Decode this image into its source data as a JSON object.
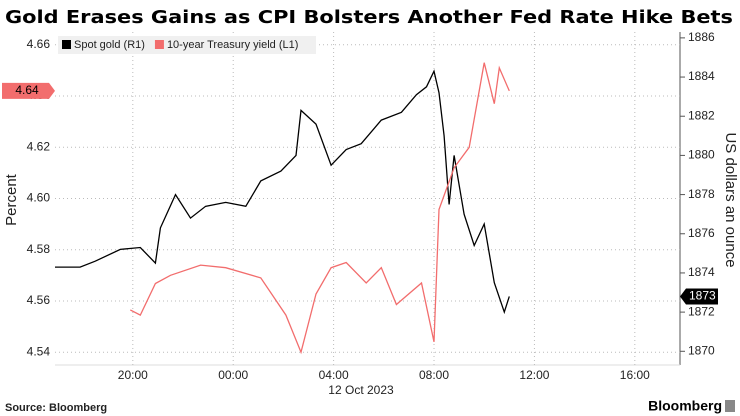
{
  "chart_data": {
    "type": "line",
    "title": "Gold Erases Gains as CPI Bolsters Another Fed Rate Hike Bets",
    "y_label": "Percent",
    "y2_label": "US dollars an ounce",
    "date_label": "12 Oct 2023",
    "source": "Source: Bloomberg",
    "brand": "Bloomberg",
    "xlim": [
      -7.1,
      17.8
    ],
    "xticks": [
      {
        "value": -4,
        "label": "20:00"
      },
      {
        "value": 0,
        "label": "00:00"
      },
      {
        "value": 4,
        "label": "04:00"
      },
      {
        "value": 8,
        "label": "08:00"
      },
      {
        "value": 12,
        "label": "12:00"
      },
      {
        "value": 16,
        "label": "16:00"
      }
    ],
    "ylim": [
      4.535,
      4.665
    ],
    "yticks": [
      4.54,
      4.56,
      4.58,
      {
        "value": 4.6,
        "label": "4.60"
      },
      4.62,
      4.64,
      4.66
    ],
    "y2lim": [
      1869.3,
      1886.3
    ],
    "y2ticks": [
      1870,
      1872,
      1874,
      1876,
      1878,
      1880,
      1882,
      1884,
      1886
    ],
    "grid": true,
    "series": [
      {
        "name": "Spot gold (R1)",
        "color": "#000000",
        "axis": "y2",
        "end_label": "1873",
        "x": [
          -7.1,
          -6.1,
          -5.5,
          -4.5,
          -3.7,
          -3.1,
          -2.9,
          -2.3,
          -1.7,
          -1.1,
          -0.3,
          0.5,
          1.1,
          1.9,
          2.5,
          2.7,
          3.3,
          3.9,
          4.5,
          5.1,
          5.9,
          6.7,
          7.3,
          7.7,
          8.0,
          8.2,
          8.4,
          8.6,
          8.8,
          9.2,
          9.6,
          10.0,
          10.4,
          10.8,
          11.0
        ],
        "values": [
          1874.3,
          1874.3,
          1874.6,
          1875.2,
          1875.3,
          1874.5,
          1876.3,
          1878.0,
          1876.8,
          1877.4,
          1877.6,
          1877.4,
          1878.7,
          1879.2,
          1880.0,
          1882.3,
          1881.6,
          1879.5,
          1880.3,
          1880.6,
          1881.8,
          1882.2,
          1883.1,
          1883.5,
          1884.3,
          1883.2,
          1881.0,
          1877.5,
          1880.0,
          1877.0,
          1875.4,
          1876.5,
          1873.5,
          1872.0,
          1872.8
        ]
      },
      {
        "name": "10-year Treasury yield (L1)",
        "color": "#f26d6d",
        "axis": "y",
        "end_label": "4.64",
        "x": [
          -4.1,
          -3.7,
          -3.1,
          -2.5,
          -1.3,
          -0.3,
          1.1,
          2.1,
          2.7,
          3.3,
          3.9,
          4.5,
          5.3,
          5.9,
          6.5,
          7.5,
          8.0,
          8.2,
          8.8,
          9.4,
          10.0,
          10.4,
          10.6,
          11.0
        ],
        "values": [
          4.5565,
          4.5545,
          4.5668,
          4.57,
          4.574,
          4.573,
          4.569,
          4.5545,
          4.54,
          4.5627,
          4.573,
          4.575,
          4.567,
          4.573,
          4.5586,
          4.567,
          4.544,
          4.5957,
          4.612,
          4.62,
          4.653,
          4.637,
          4.651,
          4.642
        ]
      }
    ]
  }
}
